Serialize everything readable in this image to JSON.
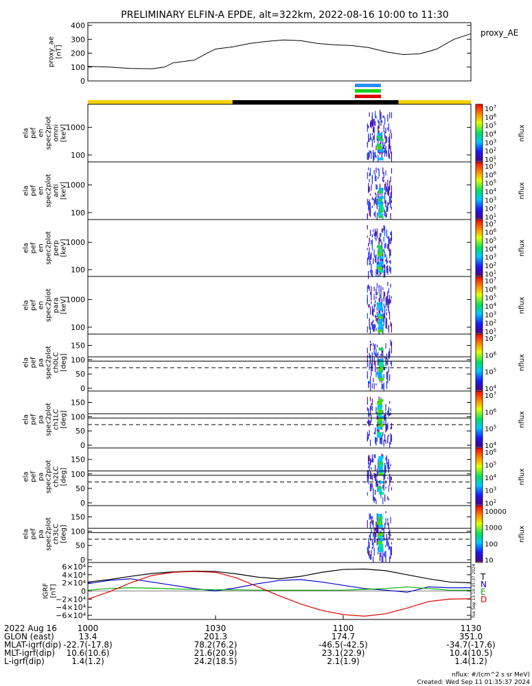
{
  "title": "PRELIMINARY ELFIN-A EPDE, alt=322km, 2022-08-16 10:00 to 11:30",
  "colors": {
    "state_yellow": "#f5d000",
    "state_black": "#000000",
    "bar_blue": "#2a8cff",
    "bar_green": "#18d020",
    "bar_red": "#e00000",
    "grf_T": "#000000",
    "grf_N": "#0000cc",
    "grf_E": "#00aa00",
    "grf_D": "#dd0000"
  },
  "chart_data": [
    {
      "type": "line",
      "id": "proxy_ae",
      "ylabel": "proxy_ae\n[nT]",
      "legend": "proxy_AE",
      "ylim": [
        0,
        420
      ],
      "yticks": [
        "400",
        "300",
        "200",
        "100",
        "0"
      ],
      "ytick_values": [
        400,
        300,
        200,
        100,
        0
      ],
      "x_minutes": [
        0,
        5,
        10,
        15,
        18,
        20,
        25,
        28,
        30,
        34,
        38,
        42,
        46,
        50,
        54,
        58,
        62,
        66,
        70,
        74,
        78,
        82,
        86,
        90
      ],
      "values": [
        105,
        100,
        90,
        88,
        100,
        130,
        150,
        200,
        230,
        245,
        270,
        285,
        295,
        290,
        270,
        260,
        255,
        240,
        210,
        190,
        195,
        230,
        300,
        340
      ]
    },
    {
      "type": "heatmap",
      "id": "omni",
      "ylabel": "ela\npef\nen\nspec2plot\nomni\n[keV]",
      "yticks": [
        "1000",
        "100"
      ],
      "zlabel": "nflux",
      "ztick_exponents": [
        "7",
        "6",
        "5",
        "4",
        "3",
        "2",
        "1"
      ]
    },
    {
      "type": "heatmap",
      "id": "anti",
      "ylabel": "ela\npef\nen\nspec2plot\nanti\n[keV]",
      "yticks": [
        "1000",
        "100"
      ],
      "zlabel": "nflux",
      "ztick_exponents": [
        "7",
        "6",
        "5",
        "4",
        "3",
        "2",
        "1"
      ]
    },
    {
      "type": "heatmap",
      "id": "perp",
      "ylabel": "ela\npef\nen\nspec2plot\nperp\n[keV]",
      "yticks": [
        "1000",
        "100"
      ],
      "zlabel": "nflux",
      "ztick_exponents": [
        "7",
        "6",
        "5",
        "4",
        "3",
        "2",
        "1"
      ]
    },
    {
      "type": "heatmap",
      "id": "para",
      "ylabel": "ela\npef\nen\nspec2plot\npara\n[keV]",
      "yticks": [
        "1000",
        "100"
      ],
      "zlabel": "nflux",
      "ztick_exponents": [
        "7",
        "6",
        "5",
        "4",
        "3",
        "2",
        "1"
      ]
    },
    {
      "type": "heatmap",
      "id": "ch0LC",
      "ylabel": "ela\npef\npa\nspec2plot\nch0LC\n[deg]",
      "yticks": [
        "150",
        "100",
        "50",
        "0"
      ],
      "zlabel": "nflux",
      "ztick_exponents": [
        "7",
        "6",
        "5",
        "4"
      ],
      "lc_lines_deg": [
        110,
        95
      ],
      "lc_dashed_deg": 72
    },
    {
      "type": "heatmap",
      "id": "ch1LC",
      "ylabel": "ela\npef\npa\nspec2plot\nch1LC\n[deg]",
      "yticks": [
        "150",
        "100",
        "50",
        "0"
      ],
      "zlabel": "nflux",
      "ztick_exponents": [
        "7",
        "6",
        "5",
        "4"
      ],
      "lc_lines_deg": [
        110,
        95
      ],
      "lc_dashed_deg": 72
    },
    {
      "type": "heatmap",
      "id": "ch2LC",
      "ylabel": "ela\npef\npa\nspec2plot\nch2LC\n[deg]",
      "yticks": [
        "150",
        "100",
        "50",
        "0"
      ],
      "zlabel": "nflux",
      "ztick_exponents": [
        "6",
        "5",
        "4",
        "3",
        "2"
      ],
      "lc_lines_deg": [
        110,
        95
      ],
      "lc_dashed_deg": 72
    },
    {
      "type": "heatmap",
      "id": "ch3LC",
      "ylabel": "ela\npef\npa\nspec2plot\nch3LC\n[deg]",
      "yticks": [
        "150",
        "100",
        "50",
        "0"
      ],
      "zlabel": "nflux",
      "ztick_plain": [
        "10000",
        "1000",
        "100",
        "10"
      ],
      "lc_lines_deg": [
        110,
        95
      ],
      "lc_dashed_deg": 72
    },
    {
      "type": "line",
      "id": "igrf",
      "ylabel": "IGRF\n[nT]",
      "ylim": [
        -70000,
        70000
      ],
      "yticks": [
        "6×10⁴",
        "4×10⁴",
        "2×10⁴",
        "0",
        "−2×10⁴",
        "−4×10⁴",
        "−6×10⁴"
      ],
      "ytick_values": [
        60000,
        40000,
        20000,
        0,
        -20000,
        -40000,
        -60000
      ],
      "legend": [
        "T",
        "N",
        "E",
        "D"
      ],
      "side_note": "Tue Sep 13 10:35:37 2024",
      "x_minutes": [
        0,
        5,
        10,
        15,
        20,
        25,
        30,
        35,
        40,
        45,
        50,
        55,
        60,
        65,
        70,
        75,
        80,
        85,
        90
      ],
      "series": [
        {
          "name": "T",
          "values": [
            22000,
            28000,
            36000,
            43000,
            47000,
            49000,
            48000,
            42000,
            34000,
            30000,
            36000,
            46000,
            53000,
            54000,
            50000,
            40000,
            30000,
            22000,
            20000
          ]
        },
        {
          "name": "N",
          "values": [
            18000,
            26000,
            30000,
            22000,
            14000,
            6000,
            0,
            8000,
            18000,
            26000,
            28000,
            22000,
            14000,
            6000,
            2000,
            -3000,
            10000,
            8000,
            8000
          ]
        },
        {
          "name": "E",
          "values": [
            2000,
            6000,
            8000,
            7000,
            5000,
            4000,
            3000,
            3000,
            2000,
            2000,
            2000,
            2000,
            2000,
            4000,
            6000,
            10000,
            6000,
            2000,
            2000
          ]
        },
        {
          "name": "D",
          "values": [
            -20000,
            -2000,
            20000,
            38000,
            46000,
            48000,
            46000,
            32000,
            10000,
            -12000,
            -32000,
            -48000,
            -58000,
            -62000,
            -56000,
            -42000,
            -26000,
            -20000,
            -19000
          ]
        }
      ]
    }
  ],
  "xaxis": {
    "rows": [
      {
        "label": "2022 Aug 16",
        "values": [
          "1000",
          "1030",
          "1100",
          "1130"
        ]
      },
      {
        "label": "GLON (east)",
        "values": [
          "13.4",
          "201.3",
          "174.7",
          "351.0"
        ]
      },
      {
        "label": "MLAT-igrf(dip)",
        "values": [
          "-22.7(-17.8)",
          "78.2(76.2)",
          "-46.5(-42.5)",
          "-34.7(-17.6)"
        ]
      },
      {
        "label": "MLT-igrf(dip)",
        "values": [
          "10.6(10.6)",
          "21.6(20.9)",
          "23.1(22.9)",
          "10.4(10.5)"
        ]
      },
      {
        "label": "L-igrf(dip)",
        "values": [
          "1.4(1.2)",
          "24.2(18.5)",
          "2.1(1.9)",
          "1.4(1.2)"
        ]
      }
    ]
  },
  "footer": {
    "nflux_units": "nflux: #/(cm^2 s sr MeV)",
    "created": "Created: Wed Sep 11 01:35:37 2024"
  }
}
